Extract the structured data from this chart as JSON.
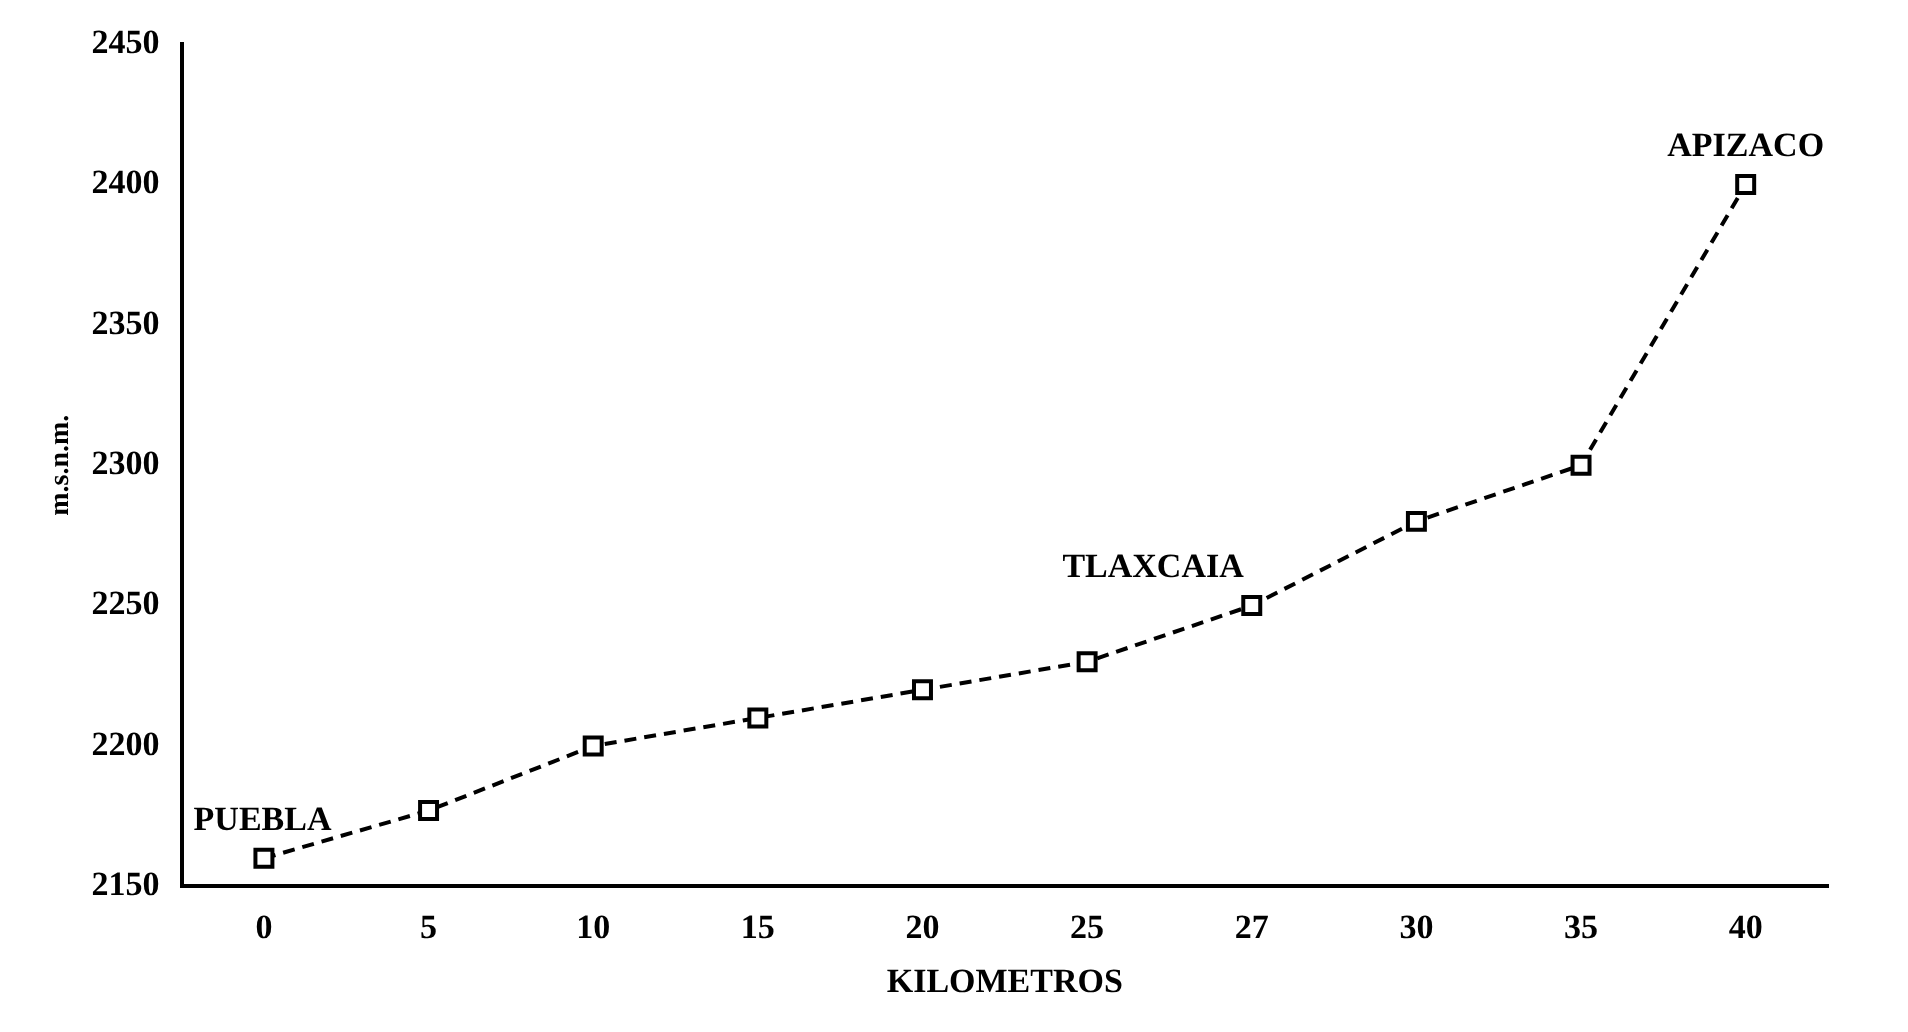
{
  "chart_data": {
    "type": "line",
    "xlabel": "KILOMETROS",
    "ylabel": "m.s.n.m.",
    "categories": [
      "0",
      "5",
      "10",
      "15",
      "20",
      "25",
      "27",
      "30",
      "35",
      "40"
    ],
    "series": [
      {
        "color": "#000000",
        "values": [
          2160,
          2177,
          2200,
          2210,
          2220,
          2230,
          2250,
          2280,
          2300,
          2400
        ]
      }
    ],
    "ylim": [
      2150,
      2450
    ],
    "yticks": [
      2150,
      2200,
      2250,
      2300,
      2350,
      2400,
      2450
    ],
    "annotations": [
      {
        "text": "PUEBLA",
        "x": "0",
        "y": 2160
      },
      {
        "text": "TLAXCAIA",
        "x": "27",
        "y": 2250
      },
      {
        "text": "APIZACO",
        "x": "40",
        "y": 2400
      }
    ],
    "marker": "square",
    "line_style": "dashed",
    "grid": false,
    "legend": false
  }
}
